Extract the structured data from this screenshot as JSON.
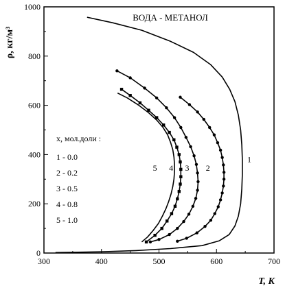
{
  "chart_data": {
    "type": "line",
    "title": "ВОДА - МЕТАНОЛ",
    "xlabel": "T, K",
    "ylabel": "ρ, кг/м³",
    "xlim": [
      300,
      700
    ],
    "ylim": [
      0,
      1000
    ],
    "xticks": [
      "300",
      "400",
      "500",
      "600",
      "700"
    ],
    "yticks": [
      "0",
      "200",
      "400",
      "600",
      "800",
      "1000"
    ],
    "grid": false,
    "legend": {
      "title": "x, мол.доли :",
      "placement": "left",
      "entries": [
        "1 - 0.0",
        "2 - 0.2",
        "3 - 0.5",
        "4 - 0.8",
        "5 - 1.0"
      ]
    },
    "series": [
      {
        "name": "1",
        "marker": "none",
        "points": [
          [
            375,
            958
          ],
          [
            420,
            935
          ],
          [
            470,
            905
          ],
          [
            520,
            860
          ],
          [
            560,
            815
          ],
          [
            590,
            765
          ],
          [
            610,
            715
          ],
          [
            623,
            665
          ],
          [
            632,
            615
          ],
          [
            638,
            560
          ],
          [
            642,
            500
          ],
          [
            644,
            440
          ],
          [
            645,
            380
          ],
          [
            645,
            320
          ],
          [
            644,
            260
          ],
          [
            642,
            200
          ],
          [
            638,
            150
          ],
          [
            632,
            110
          ],
          [
            622,
            75
          ],
          [
            605,
            50
          ],
          [
            575,
            30
          ],
          [
            520,
            18
          ],
          [
            460,
            10
          ],
          [
            400,
            5
          ],
          [
            350,
            3
          ],
          [
            320,
            2
          ]
        ]
      },
      {
        "name": "2",
        "marker": "dot",
        "points": [
          [
            537,
            633
          ],
          [
            553,
            603
          ],
          [
            567,
            573
          ],
          [
            578,
            543
          ],
          [
            588,
            510
          ],
          [
            596,
            480
          ],
          [
            602,
            448
          ],
          [
            607,
            418
          ],
          [
            610,
            388
          ],
          [
            612,
            358
          ],
          [
            613,
            328
          ],
          [
            613,
            300
          ],
          [
            612,
            272
          ],
          [
            610,
            244
          ],
          [
            607,
            216
          ],
          [
            603,
            188
          ],
          [
            597,
            160
          ],
          [
            590,
            133
          ],
          [
            580,
            108
          ],
          [
            566,
            82
          ],
          [
            548,
            60
          ],
          [
            532,
            48
          ]
        ]
      },
      {
        "name": "3",
        "marker": "dot",
        "points": [
          [
            427,
            740
          ],
          [
            450,
            712
          ],
          [
            475,
            670
          ],
          [
            496,
            630
          ],
          [
            513,
            590
          ],
          [
            527,
            550
          ],
          [
            538,
            510
          ],
          [
            547,
            470
          ],
          [
            555,
            432
          ],
          [
            561,
            395
          ],
          [
            565,
            360
          ],
          [
            567,
            325
          ],
          [
            568,
            290
          ],
          [
            567,
            255
          ],
          [
            564,
            222
          ],
          [
            559,
            190
          ],
          [
            552,
            158
          ],
          [
            543,
            128
          ],
          [
            532,
            100
          ],
          [
            518,
            75
          ],
          [
            500,
            55
          ],
          [
            485,
            45
          ]
        ]
      },
      {
        "name": "4",
        "marker": "square",
        "points": [
          [
            435,
            665
          ],
          [
            450,
            640
          ],
          [
            467,
            610
          ],
          [
            482,
            580
          ],
          [
            496,
            550
          ],
          [
            508,
            520
          ],
          [
            518,
            490
          ],
          [
            526,
            460
          ],
          [
            531,
            430
          ],
          [
            535,
            400
          ],
          [
            537,
            370
          ],
          [
            538,
            340
          ],
          [
            538,
            310
          ],
          [
            537,
            280
          ],
          [
            535,
            250
          ],
          [
            532,
            220
          ],
          [
            528,
            190
          ],
          [
            522,
            160
          ],
          [
            514,
            130
          ],
          [
            505,
            100
          ],
          [
            493,
            72
          ],
          [
            478,
            45
          ]
        ]
      },
      {
        "name": "5",
        "marker": "none",
        "points": [
          [
            428,
            650
          ],
          [
            445,
            630
          ],
          [
            465,
            600
          ],
          [
            482,
            570
          ],
          [
            496,
            540
          ],
          [
            507,
            510
          ],
          [
            515,
            480
          ],
          [
            520,
            450
          ],
          [
            524,
            420
          ],
          [
            526,
            390
          ],
          [
            527,
            360
          ],
          [
            527,
            330
          ],
          [
            526,
            300
          ],
          [
            524,
            270
          ],
          [
            521,
            240
          ],
          [
            517,
            210
          ],
          [
            512,
            180
          ],
          [
            506,
            150
          ],
          [
            499,
            120
          ],
          [
            490,
            92
          ],
          [
            480,
            65
          ],
          [
            470,
            45
          ]
        ]
      }
    ],
    "curve_labels": [
      {
        "text": "1",
        "x": 657,
        "y": 380
      },
      {
        "text": "2",
        "x": 585,
        "y": 345
      },
      {
        "text": "3",
        "x": 549,
        "y": 345
      },
      {
        "text": "4",
        "x": 521,
        "y": 345
      },
      {
        "text": "5",
        "x": 493,
        "y": 345
      }
    ]
  }
}
